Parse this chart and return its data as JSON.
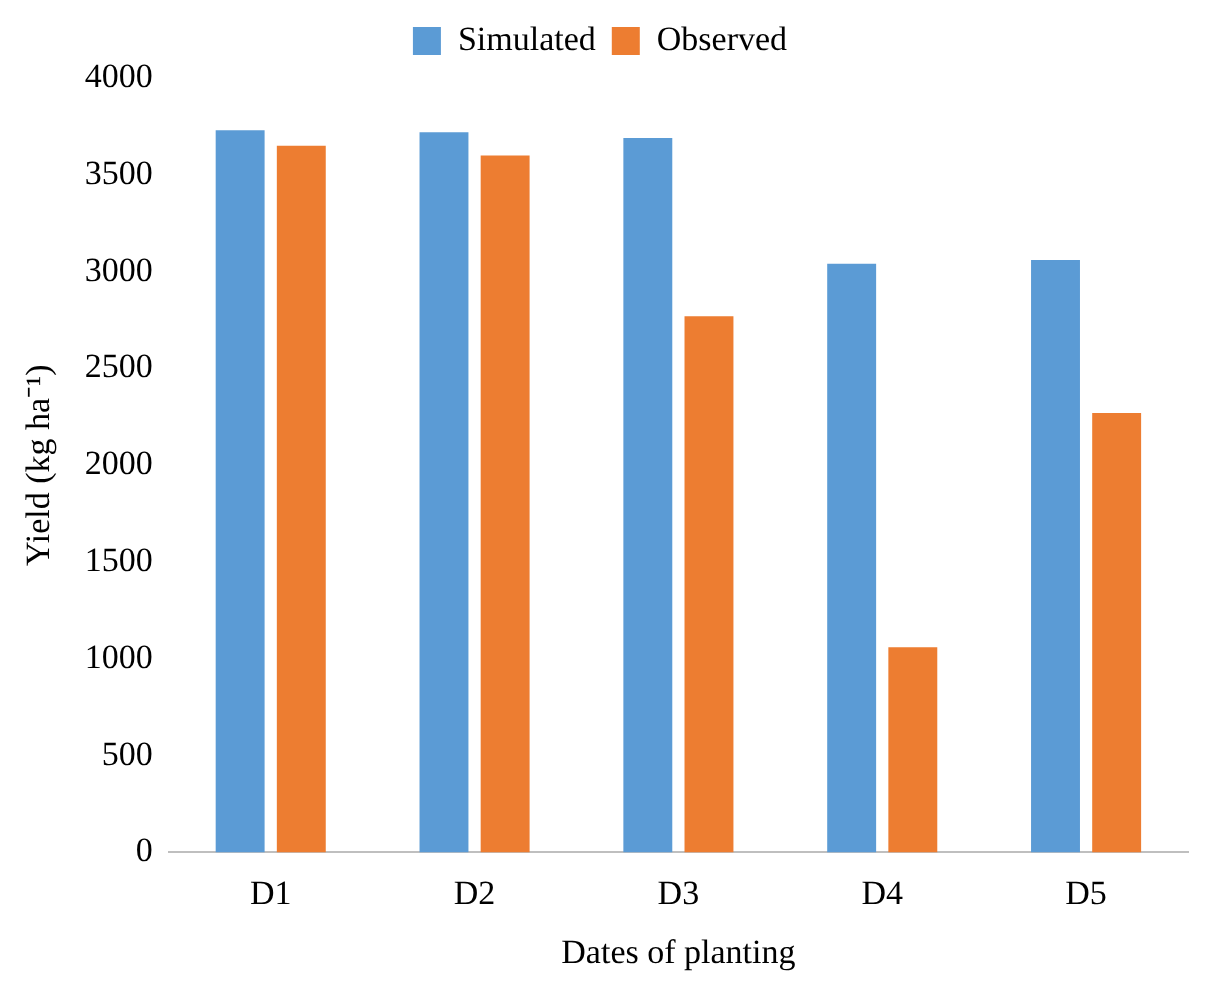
{
  "chart_data": {
    "type": "bar",
    "xlabel": "Dates of planting",
    "ylabel": "Yield (kg ha⁻¹)",
    "categories": [
      "D1",
      "D2",
      "D3",
      "D4",
      "D5"
    ],
    "series": [
      {
        "name": "Simulated",
        "color": "#5b9bd5",
        "values": [
          3730,
          3720,
          3690,
          3040,
          3060
        ]
      },
      {
        "name": "Observed",
        "color": "#ed7d31",
        "values": [
          3650,
          3600,
          2770,
          1060,
          2270
        ]
      }
    ],
    "ylim": [
      0,
      4000
    ],
    "yticks": [
      0,
      500,
      1000,
      1500,
      2000,
      2500,
      3000,
      3500,
      4000
    ],
    "grid": false,
    "legend": "top"
  }
}
